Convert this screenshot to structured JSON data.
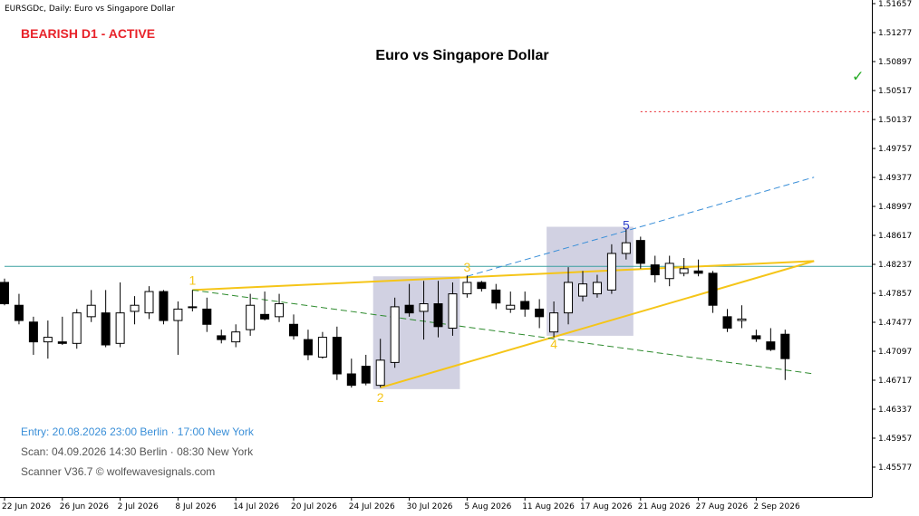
{
  "header": {
    "symbol_line": "EURSGDc, Daily:  Euro vs Singapore Dollar"
  },
  "status": {
    "label": "BEARISH D1 - ACTIVE",
    "color": "#e8232a"
  },
  "info": {
    "entry": "Entry: 20.08.2026  23:00 Berlin · 17:00 New York",
    "scan": "Scan:  04.09.2026  14:30 Berlin · 08:30 New York",
    "scanner": "Scanner V36.7  © wolfewavesignals.com",
    "entry_color": "#3a8fd8",
    "text_color": "#555555"
  },
  "chart_data": {
    "type": "candlestick",
    "title": "Euro vs Singapore Dollar",
    "ylim": [
      1.454,
      1.518
    ],
    "y_ticks": [
      "1.51657",
      "1.51277",
      "1.50897",
      "1.50517",
      "1.50137",
      "1.49757",
      "1.49377",
      "1.48997",
      "1.48617",
      "1.48237",
      "1.47857",
      "1.47477",
      "1.47097",
      "1.46717",
      "1.46337",
      "1.45957",
      "1.45577"
    ],
    "x_ticks": [
      {
        "index": 0,
        "label": "22 Jun 2026"
      },
      {
        "index": 4,
        "label": "26 Jun 2026"
      },
      {
        "index": 8,
        "label": "2 Jul 2026"
      },
      {
        "index": 12,
        "label": "8 Jul 2026"
      },
      {
        "index": 16,
        "label": "14 Jul 2026"
      },
      {
        "index": 20,
        "label": "20 Jul 2026"
      },
      {
        "index": 24,
        "label": "24 Jul 2026"
      },
      {
        "index": 28,
        "label": "30 Jul 2026"
      },
      {
        "index": 32,
        "label": "5 Aug 2026"
      },
      {
        "index": 36,
        "label": "11 Aug 2026"
      },
      {
        "index": 40,
        "label": "17 Aug 2026"
      },
      {
        "index": 44,
        "label": "21 Aug 2026"
      },
      {
        "index": 48,
        "label": "27 Aug 2026"
      },
      {
        "index": 52,
        "label": "2 Sep 2026"
      }
    ],
    "candles": [
      {
        "o": 1.48,
        "h": 1.4805,
        "l": 1.477,
        "c": 1.4772
      },
      {
        "o": 1.477,
        "h": 1.4785,
        "l": 1.4745,
        "c": 1.475
      },
      {
        "o": 1.4748,
        "h": 1.4755,
        "l": 1.4705,
        "c": 1.4722
      },
      {
        "o": 1.4722,
        "h": 1.475,
        "l": 1.47,
        "c": 1.4728
      },
      {
        "o": 1.4722,
        "h": 1.4755,
        "l": 1.4718,
        "c": 1.472
      },
      {
        "o": 1.472,
        "h": 1.4765,
        "l": 1.4713,
        "c": 1.476
      },
      {
        "o": 1.4755,
        "h": 1.479,
        "l": 1.4748,
        "c": 1.477
      },
      {
        "o": 1.476,
        "h": 1.479,
        "l": 1.4715,
        "c": 1.4718
      },
      {
        "o": 1.472,
        "h": 1.48,
        "l": 1.4715,
        "c": 1.476
      },
      {
        "o": 1.4762,
        "h": 1.4782,
        "l": 1.4745,
        "c": 1.477
      },
      {
        "o": 1.476,
        "h": 1.4795,
        "l": 1.4752,
        "c": 1.4788
      },
      {
        "o": 1.4788,
        "h": 1.479,
        "l": 1.4745,
        "c": 1.475
      },
      {
        "o": 1.475,
        "h": 1.4775,
        "l": 1.4705,
        "c": 1.4765
      },
      {
        "o": 1.4768,
        "h": 1.479,
        "l": 1.4762,
        "c": 1.4768
      },
      {
        "o": 1.4765,
        "h": 1.478,
        "l": 1.4735,
        "c": 1.4745
      },
      {
        "o": 1.473,
        "h": 1.4738,
        "l": 1.472,
        "c": 1.4725
      },
      {
        "o": 1.4722,
        "h": 1.4745,
        "l": 1.4715,
        "c": 1.4735
      },
      {
        "o": 1.4738,
        "h": 1.4785,
        "l": 1.473,
        "c": 1.477
      },
      {
        "o": 1.4758,
        "h": 1.4788,
        "l": 1.475,
        "c": 1.4752
      },
      {
        "o": 1.4755,
        "h": 1.4785,
        "l": 1.4748,
        "c": 1.4772
      },
      {
        "o": 1.4745,
        "h": 1.4758,
        "l": 1.4725,
        "c": 1.473
      },
      {
        "o": 1.4725,
        "h": 1.4738,
        "l": 1.4698,
        "c": 1.4705
      },
      {
        "o": 1.4702,
        "h": 1.4735,
        "l": 1.47,
        "c": 1.4728
      },
      {
        "o": 1.4728,
        "h": 1.4742,
        "l": 1.4672,
        "c": 1.468
      },
      {
        "o": 1.468,
        "h": 1.47,
        "l": 1.4662,
        "c": 1.4665
      },
      {
        "o": 1.469,
        "h": 1.4705,
        "l": 1.4665,
        "c": 1.4668
      },
      {
        "o": 1.4665,
        "h": 1.4726,
        "l": 1.4662,
        "c": 1.4698
      },
      {
        "o": 1.4695,
        "h": 1.478,
        "l": 1.4688,
        "c": 1.4768
      },
      {
        "o": 1.477,
        "h": 1.4798,
        "l": 1.4755,
        "c": 1.476
      },
      {
        "o": 1.4762,
        "h": 1.4802,
        "l": 1.4725,
        "c": 1.4772
      },
      {
        "o": 1.4772,
        "h": 1.4802,
        "l": 1.4728,
        "c": 1.4742
      },
      {
        "o": 1.474,
        "h": 1.48,
        "l": 1.473,
        "c": 1.4785
      },
      {
        "o": 1.4785,
        "h": 1.4809,
        "l": 1.478,
        "c": 1.48
      },
      {
        "o": 1.48,
        "h": 1.4802,
        "l": 1.4788,
        "c": 1.4792
      },
      {
        "o": 1.479,
        "h": 1.4798,
        "l": 1.4765,
        "c": 1.4773
      },
      {
        "o": 1.4765,
        "h": 1.4788,
        "l": 1.476,
        "c": 1.477
      },
      {
        "o": 1.4775,
        "h": 1.4788,
        "l": 1.4755,
        "c": 1.4765
      },
      {
        "o": 1.4765,
        "h": 1.4778,
        "l": 1.474,
        "c": 1.4755
      },
      {
        "o": 1.4735,
        "h": 1.4775,
        "l": 1.4728,
        "c": 1.476
      },
      {
        "o": 1.476,
        "h": 1.482,
        "l": 1.4745,
        "c": 1.48
      },
      {
        "o": 1.4782,
        "h": 1.4815,
        "l": 1.4775,
        "c": 1.4798
      },
      {
        "o": 1.4785,
        "h": 1.481,
        "l": 1.478,
        "c": 1.48
      },
      {
        "o": 1.479,
        "h": 1.485,
        "l": 1.4785,
        "c": 1.4838
      },
      {
        "o": 1.4838,
        "h": 1.487,
        "l": 1.483,
        "c": 1.4852
      },
      {
        "o": 1.4855,
        "h": 1.486,
        "l": 1.4818,
        "c": 1.4825
      },
      {
        "o": 1.4823,
        "h": 1.4835,
        "l": 1.48,
        "c": 1.481
      },
      {
        "o": 1.4805,
        "h": 1.4835,
        "l": 1.4795,
        "c": 1.4825
      },
      {
        "o": 1.4812,
        "h": 1.4832,
        "l": 1.4808,
        "c": 1.4818
      },
      {
        "o": 1.4815,
        "h": 1.483,
        "l": 1.4808,
        "c": 1.4812
      },
      {
        "o": 1.4812,
        "h": 1.4815,
        "l": 1.476,
        "c": 1.477
      },
      {
        "o": 1.4755,
        "h": 1.4765,
        "l": 1.4735,
        "c": 1.474
      },
      {
        "o": 1.475,
        "h": 1.477,
        "l": 1.474,
        "c": 1.4752
      },
      {
        "o": 1.473,
        "h": 1.4738,
        "l": 1.4722,
        "c": 1.4726
      },
      {
        "o": 1.4722,
        "h": 1.474,
        "l": 1.471,
        "c": 1.4712
      },
      {
        "o": 1.4732,
        "h": 1.4738,
        "l": 1.4672,
        "c": 1.47
      }
    ],
    "wave_points": [
      {
        "label": "1",
        "index": 13,
        "price": 1.479,
        "color": "#f5c518",
        "position": "above"
      },
      {
        "label": "2",
        "index": 26,
        "price": 1.4662,
        "color": "#f5c518",
        "position": "below"
      },
      {
        "label": "3",
        "index": 32,
        "price": 1.4807,
        "color": "#f5c518",
        "position": "above"
      },
      {
        "label": "4",
        "index": 38,
        "price": 1.4732,
        "color": "#f5c518",
        "position": "below"
      },
      {
        "label": "5",
        "index": 43,
        "price": 1.4862,
        "color": "#3344cc",
        "position": "above"
      }
    ],
    "lines": [
      {
        "name": "wave-1-3-line",
        "from": [
          13,
          1.479
        ],
        "to": [
          56,
          1.4828
        ],
        "color": "#f5c518",
        "style": "solid"
      },
      {
        "name": "wave-2-4-line",
        "from": [
          26,
          1.4662
        ],
        "to": [
          56,
          1.4828
        ],
        "color": "#f5c518",
        "style": "solid"
      },
      {
        "name": "wave-1-4-target-line",
        "from": [
          13,
          1.479
        ],
        "to": [
          56,
          1.468
        ],
        "color": "#2e8b2e",
        "style": "dashed"
      },
      {
        "name": "wave-2-4-projection-line",
        "from": [
          32,
          1.4808
        ],
        "to": [
          56,
          1.4938
        ],
        "color": "#3a8fd8",
        "style": "dashed"
      }
    ],
    "boxes": [
      {
        "name": "zone-box-2-3",
        "from_index": 25.5,
        "to_index": 31.5,
        "top": 1.4808,
        "bottom": 1.466
      },
      {
        "name": "zone-box-4-5",
        "from_index": 37.5,
        "to_index": 43.5,
        "top": 1.4873,
        "bottom": 1.473
      }
    ],
    "hlines": [
      {
        "name": "stop-loss-line",
        "price": 1.5024,
        "from_index": 44,
        "color": "#e8232a",
        "style": "dotted"
      },
      {
        "name": "current-price-line",
        "price": 1.4821,
        "from_index": 0,
        "color": "#3aa0a0",
        "style": "solid"
      }
    ],
    "marker": {
      "symbol": "✓",
      "color": "#22aa22",
      "price": 1.5075
    }
  }
}
